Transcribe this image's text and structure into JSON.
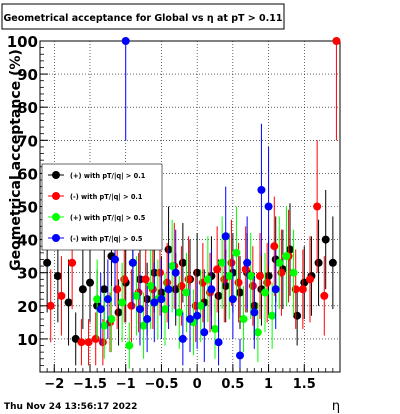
{
  "chart_data": {
    "type": "scatter",
    "title": "Geometrical acceptance for Global vs  η at pT > 0.11",
    "xlabel": "η",
    "ylabel": "Geometrical acceptance (%)",
    "xlim": [
      -2.2,
      2.0
    ],
    "ylim": [
      0,
      100
    ],
    "xticks": [
      -2,
      -1.5,
      -1,
      -0.5,
      0,
      0.5,
      1,
      1.5
    ],
    "xtick_labels": [
      "−2",
      "−1.5",
      "−1",
      "−0.5",
      "0",
      "0.5",
      "1",
      "1.5"
    ],
    "yticks": [
      10,
      20,
      30,
      40,
      50,
      60,
      70,
      80,
      90,
      100
    ],
    "ytick_labels": [
      "10",
      "20",
      "30",
      "40",
      "50",
      "60",
      "70",
      "80",
      "90",
      "100"
    ],
    "grid": true,
    "legend_position": "middle-left",
    "timestamp": "Thu Nov 24 13:56:17 2022",
    "series": [
      {
        "name": "(+) with pT/|q| > 0.1",
        "color": "#000000",
        "x": [
          -2.1,
          -1.95,
          -1.8,
          -1.7,
          -1.6,
          -1.5,
          -1.4,
          -1.3,
          -1.2,
          -1.1,
          -1.0,
          -0.9,
          -0.8,
          -0.7,
          -0.6,
          -0.5,
          -0.4,
          -0.3,
          -0.2,
          -0.1,
          0.0,
          0.1,
          0.2,
          0.3,
          0.4,
          0.5,
          0.6,
          0.7,
          0.8,
          0.9,
          1.0,
          1.1,
          1.2,
          1.3,
          1.4,
          1.5,
          1.6,
          1.7,
          1.8,
          1.9
        ],
        "y": [
          33,
          29,
          21,
          10,
          25,
          27,
          20,
          25,
          35,
          18,
          27,
          33,
          28,
          22,
          30,
          24,
          37,
          25,
          33,
          28,
          30,
          21,
          29,
          23,
          26,
          30,
          24,
          30,
          20,
          25,
          29,
          34,
          31,
          37,
          17,
          27,
          29,
          33,
          40,
          33
        ],
        "err": [
          15,
          14,
          13,
          8,
          12,
          12,
          11,
          12,
          14,
          10,
          12,
          13,
          12,
          11,
          12,
          11,
          13,
          11,
          12,
          12,
          12,
          10,
          12,
          11,
          11,
          12,
          11,
          12,
          10,
          11,
          12,
          13,
          12,
          14,
          9,
          11,
          12,
          13,
          15,
          14
        ]
      },
      {
        "name": "(-) with pT/|q| > 0.1",
        "color": "#ff0000",
        "x": [
          -2.05,
          -1.9,
          -1.75,
          -1.62,
          -1.52,
          -1.42,
          -1.32,
          -1.22,
          -1.12,
          -1.02,
          -0.92,
          -0.82,
          -0.72,
          -0.62,
          -0.52,
          -0.42,
          -0.32,
          -0.22,
          -0.12,
          -0.02,
          0.08,
          0.18,
          0.28,
          0.38,
          0.48,
          0.58,
          0.68,
          0.78,
          0.88,
          0.98,
          1.08,
          1.18,
          1.28,
          1.38,
          1.48,
          1.58,
          1.68,
          1.78,
          1.95
        ],
        "y": [
          20,
          23,
          33,
          9,
          9,
          10,
          9,
          15,
          25,
          28,
          20,
          24,
          28,
          25,
          30,
          27,
          32,
          26,
          28,
          20,
          27,
          24,
          31,
          28,
          33,
          27,
          31,
          26,
          29,
          27,
          38,
          30,
          35,
          25,
          25,
          28,
          50,
          23,
          100
        ],
        "err": [
          11,
          12,
          14,
          7,
          7,
          8,
          7,
          9,
          12,
          13,
          11,
          12,
          13,
          12,
          13,
          12,
          13,
          12,
          13,
          11,
          12,
          12,
          13,
          13,
          13,
          12,
          13,
          12,
          13,
          12,
          15,
          13,
          14,
          12,
          12,
          13,
          20,
          12,
          30
        ]
      },
      {
        "name": "(+) with pT/|q| > 0.5",
        "color": "#00ff00",
        "x": [
          -1.4,
          -1.3,
          -1.2,
          -1.05,
          -0.95,
          -0.85,
          -0.75,
          -0.65,
          -0.55,
          -0.45,
          -0.35,
          -0.25,
          -0.15,
          -0.05,
          0.05,
          0.15,
          0.25,
          0.35,
          0.45,
          0.55,
          0.65,
          0.75,
          0.85,
          0.95,
          1.05,
          1.15,
          1.25,
          1.35
        ],
        "y": [
          22,
          14,
          16,
          21,
          8,
          23,
          14,
          26,
          22,
          19,
          32,
          18,
          24,
          15,
          20,
          28,
          13,
          33,
          29,
          36,
          16,
          29,
          12,
          24,
          17,
          33,
          35,
          30
        ],
        "err": [
          12,
          10,
          10,
          12,
          7,
          12,
          10,
          13,
          12,
          11,
          14,
          11,
          12,
          10,
          11,
          13,
          9,
          14,
          13,
          14,
          10,
          13,
          9,
          12,
          10,
          14,
          15,
          13
        ]
      },
      {
        "name": "(-) with pT/|q| > 0.5",
        "color": "#0000ff",
        "x": [
          -1.35,
          -1.25,
          -1.15,
          -1.0,
          -0.9,
          -0.8,
          -0.7,
          -0.6,
          -0.5,
          -0.4,
          -0.3,
          -0.2,
          -0.1,
          0.0,
          0.1,
          0.2,
          0.3,
          0.4,
          0.5,
          0.6,
          0.7,
          0.8,
          0.9,
          1.0,
          1.1
        ],
        "y": [
          19,
          22,
          34,
          100,
          33,
          19,
          16,
          21,
          22,
          25,
          30,
          10,
          16,
          17,
          12,
          25,
          9,
          41,
          22,
          5,
          33,
          18,
          55,
          50,
          25
        ],
        "err": [
          11,
          12,
          14,
          30,
          14,
          11,
          10,
          12,
          12,
          12,
          13,
          8,
          10,
          10,
          9,
          12,
          7,
          15,
          12,
          5,
          14,
          11,
          20,
          18,
          12
        ]
      }
    ]
  }
}
